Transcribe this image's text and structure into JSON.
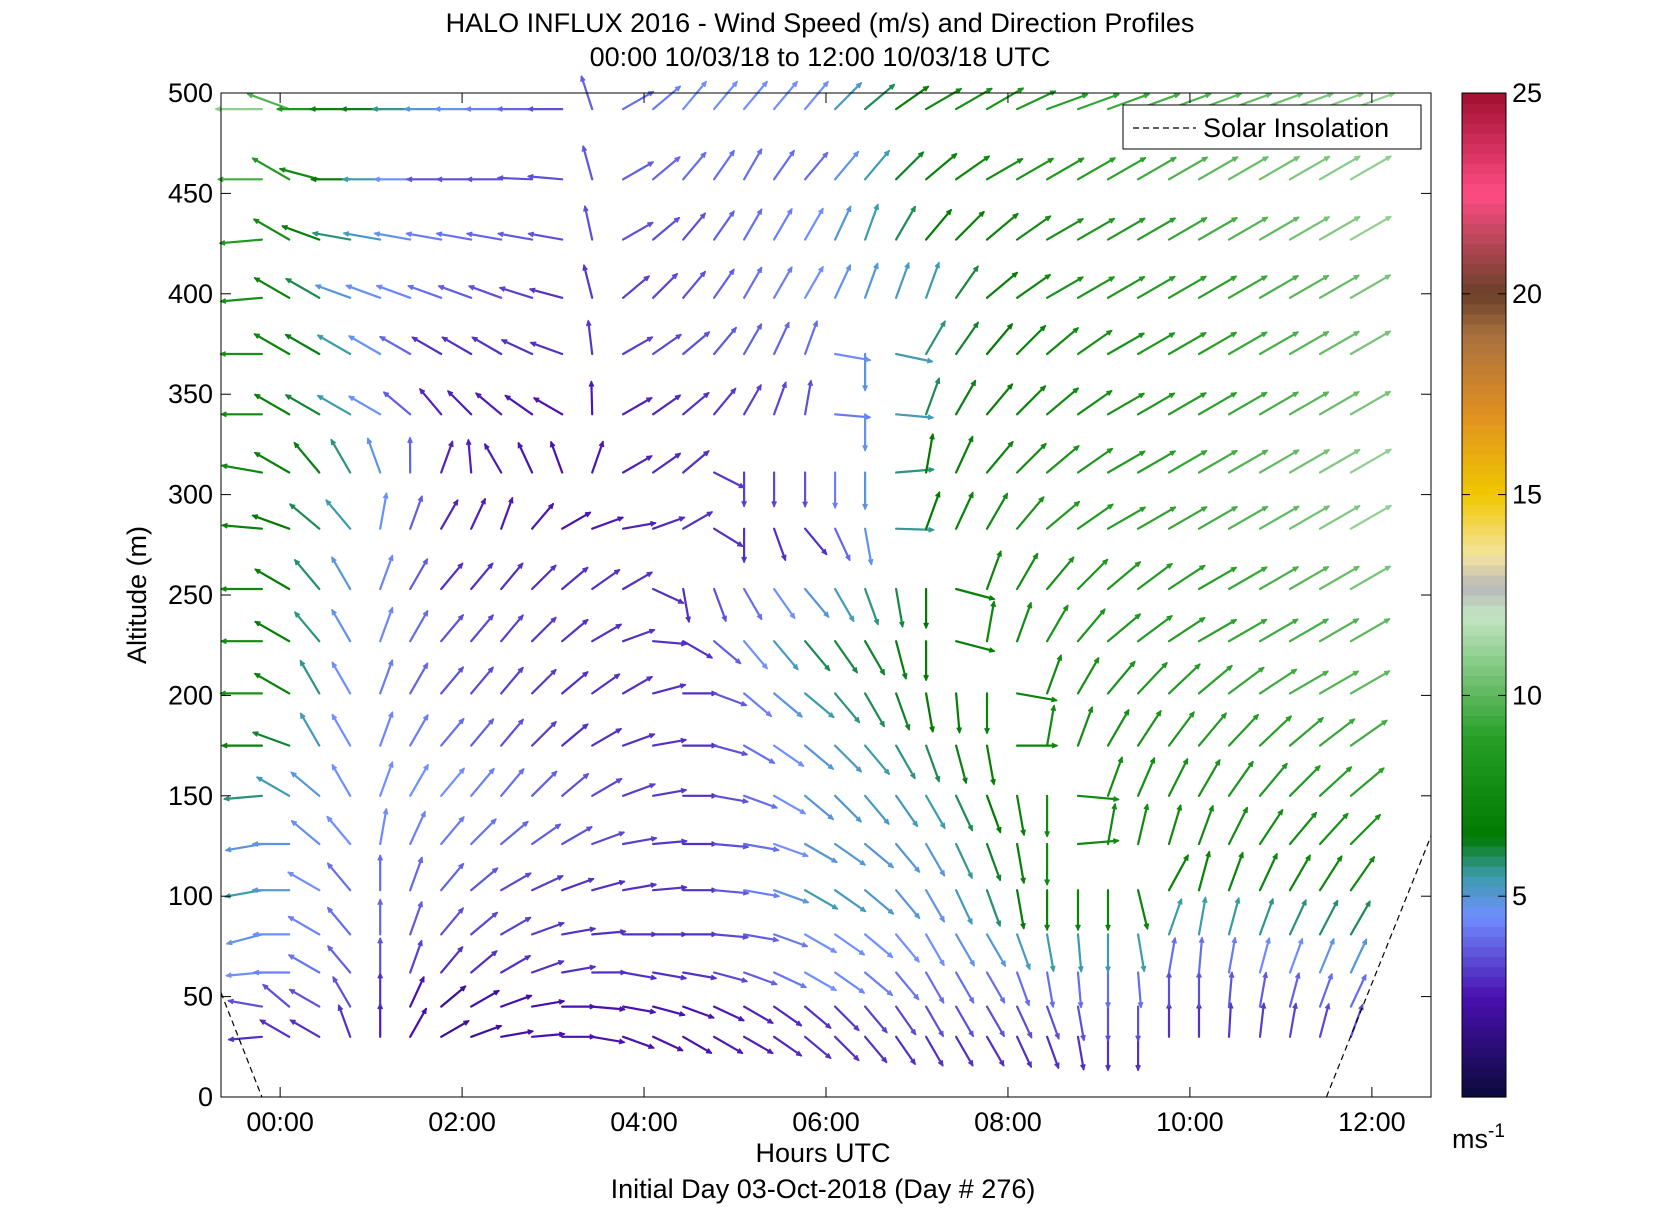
{
  "chart_data": {
    "type": "quiver",
    "title": "HALO INFLUX 2016 - Wind Speed (m/s) and Direction Profiles",
    "subtitle": "00:00 10/03/18 to 12:00 10/03/18  UTC",
    "xlabel": "Hours UTC",
    "footer": "Initial Day 03-Oct-2018 (Day # 276)",
    "ylabel": "Altitude (m)",
    "xlim": [
      -0.65,
      12.65
    ],
    "ylim": [
      0,
      500
    ],
    "x_ticks": [
      0,
      2,
      4,
      6,
      8,
      10,
      12
    ],
    "x_tick_labels": [
      "00:00",
      "02:00",
      "04:00",
      "06:00",
      "08:00",
      "10:00",
      "12:00"
    ],
    "y_ticks": [
      0,
      50,
      100,
      150,
      200,
      250,
      300,
      350,
      400,
      450,
      500
    ],
    "y_tick_labels": [
      "0",
      "50",
      "100",
      "150",
      "200",
      "250",
      "300",
      "350",
      "400",
      "450",
      "500"
    ],
    "legend": {
      "position": "top-right",
      "entries": [
        "Solar Insolation"
      ]
    },
    "colorbar": {
      "min": 0,
      "max": 25,
      "ticks": [
        5,
        10,
        15,
        20,
        25
      ],
      "tick_labels": [
        "5",
        "10",
        "15",
        "20",
        "25"
      ],
      "unit_label": "ms",
      "unit_exponent": "-1",
      "stops": [
        {
          "v": 0,
          "c": "#0a0a3c"
        },
        {
          "v": 2.5,
          "c": "#4a10b0"
        },
        {
          "v": 4.5,
          "c": "#6f8fff"
        },
        {
          "v": 5.5,
          "c": "#3c9cac"
        },
        {
          "v": 6.5,
          "c": "#007a00"
        },
        {
          "v": 9,
          "c": "#28a028"
        },
        {
          "v": 12,
          "c": "#c4e6c4"
        },
        {
          "v": 12.7,
          "c": "#b8b8b8"
        },
        {
          "v": 13.5,
          "c": "#f4e4a0"
        },
        {
          "v": 15,
          "c": "#f0c800"
        },
        {
          "v": 17,
          "c": "#e09020"
        },
        {
          "v": 19,
          "c": "#a87040"
        },
        {
          "v": 20,
          "c": "#6a4028"
        },
        {
          "v": 22.5,
          "c": "#ff4c84"
        },
        {
          "v": 25,
          "c": "#a01030"
        }
      ]
    },
    "solar_insolation": [
      {
        "x": [
          -0.65,
          -0.2
        ],
        "y": [
          52,
          0
        ]
      },
      {
        "x": [
          11.5,
          12.65
        ],
        "y": [
          0,
          130
        ]
      }
    ],
    "profile_times": [
      -0.2,
      0.1,
      0.43,
      0.77,
      1.1,
      1.43,
      1.77,
      2.1,
      2.43,
      2.77,
      3.1,
      3.43,
      3.77,
      4.1,
      4.43,
      4.77,
      5.1,
      5.43,
      5.77,
      6.1,
      6.43,
      6.77,
      7.1,
      7.43,
      7.77,
      8.1,
      8.43,
      8.77,
      9.1,
      9.43,
      9.77,
      10.1,
      10.43,
      10.77,
      11.1,
      11.43,
      11.77
    ],
    "altitudes": [
      30,
      45,
      62,
      81,
      103,
      126,
      150,
      175,
      201,
      227,
      253,
      283,
      311,
      340,
      370,
      398,
      427,
      457,
      492
    ],
    "direction_keyframes": [
      {
        "t": -0.2,
        "a": [
          265,
          280,
          265,
          255,
          260,
          260,
          265,
          270,
          270,
          270,
          270,
          275,
          280,
          270,
          270,
          265,
          265,
          270,
          270
        ]
      },
      {
        "t": 0.1,
        "a": [
          300,
          310,
          270,
          270,
          270,
          270,
          300,
          290,
          300,
          300,
          300,
          290,
          300,
          300,
          300,
          300,
          300,
          300,
          290
        ]
      },
      {
        "t": 0.43,
        "a": [
          300,
          300,
          300,
          300,
          300,
          310,
          310,
          330,
          330,
          320,
          320,
          310,
          320,
          300,
          300,
          300,
          290,
          285,
          270
        ]
      },
      {
        "t": 0.77,
        "a": [
          340,
          330,
          320,
          320,
          320,
          320,
          330,
          330,
          330,
          330,
          330,
          320,
          330,
          300,
          300,
          290,
          280,
          270,
          270
        ]
      },
      {
        "t": 1.1,
        "a": [
          0,
          0,
          0,
          0,
          0,
          10,
          20,
          20,
          20,
          20,
          20,
          10,
          340,
          300,
          300,
          290,
          280,
          270,
          270
        ]
      },
      {
        "t": 1.77,
        "a": [
          60,
          50,
          40,
          40,
          40,
          40,
          40,
          40,
          40,
          40,
          40,
          30,
          20,
          320,
          300,
          290,
          280,
          270,
          270
        ]
      },
      {
        "t": 2.43,
        "a": [
          80,
          70,
          60,
          60,
          60,
          50,
          40,
          40,
          40,
          40,
          40,
          20,
          330,
          310,
          300,
          290,
          280,
          270,
          270
        ]
      },
      {
        "t": 3.1,
        "a": [
          90,
          90,
          80,
          80,
          70,
          60,
          50,
          50,
          50,
          50,
          50,
          60,
          340,
          300,
          290,
          285,
          280,
          275,
          270
        ]
      },
      {
        "t": 3.77,
        "a": [
          110,
          100,
          100,
          90,
          80,
          80,
          70,
          70,
          60,
          70,
          60,
          80,
          60,
          60,
          60,
          50,
          60,
          60,
          60
        ]
      },
      {
        "t": 4.43,
        "a": [
          120,
          110,
          100,
          90,
          90,
          90,
          90,
          90,
          90,
          120,
          170,
          60,
          50,
          50,
          50,
          40,
          40,
          40,
          40
        ]
      },
      {
        "t": 5.1,
        "a": [
          120,
          120,
          110,
          100,
          100,
          100,
          110,
          120,
          130,
          140,
          150,
          180,
          180,
          30,
          30,
          30,
          30,
          30,
          40
        ]
      },
      {
        "t": 5.77,
        "a": [
          130,
          130,
          120,
          120,
          120,
          120,
          130,
          130,
          130,
          140,
          140,
          140,
          180,
          10,
          20,
          30,
          30,
          40,
          40
        ]
      },
      {
        "t": 6.43,
        "a": [
          140,
          140,
          130,
          130,
          130,
          130,
          140,
          140,
          150,
          150,
          160,
          170,
          180,
          180,
          180,
          20,
          20,
          40,
          50
        ]
      },
      {
        "t": 7.1,
        "a": [
          150,
          150,
          150,
          150,
          150,
          150,
          150,
          160,
          170,
          180,
          180,
          20,
          10,
          20,
          30,
          20,
          40,
          50,
          60
        ]
      },
      {
        "t": 7.77,
        "a": [
          150,
          150,
          150,
          150,
          160,
          160,
          160,
          170,
          180,
          10,
          20,
          30,
          40,
          40,
          40,
          50,
          50,
          60,
          60
        ]
      },
      {
        "t": 8.43,
        "a": [
          160,
          160,
          170,
          170,
          180,
          180,
          180,
          10,
          20,
          30,
          40,
          50,
          50,
          50,
          50,
          60,
          60,
          60,
          70
        ]
      },
      {
        "t": 9.1,
        "a": [
          180,
          180,
          180,
          180,
          180,
          10,
          20,
          30,
          40,
          50,
          50,
          60,
          60,
          60,
          60,
          60,
          60,
          60,
          70
        ]
      },
      {
        "t": 10.1,
        "a": [
          0,
          0,
          5,
          10,
          15,
          20,
          30,
          40,
          50,
          60,
          60,
          60,
          60,
          60,
          60,
          60,
          60,
          60,
          70
        ]
      },
      {
        "t": 11.1,
        "a": [
          10,
          15,
          20,
          25,
          30,
          40,
          45,
          50,
          60,
          60,
          60,
          60,
          60,
          60,
          60,
          60,
          60,
          60,
          70
        ]
      },
      {
        "t": 11.77,
        "a": [
          20,
          25,
          25,
          30,
          35,
          45,
          50,
          55,
          60,
          60,
          60,
          60,
          60,
          60,
          60,
          60,
          60,
          60,
          70
        ]
      }
    ],
    "speed_keyframes": [
      {
        "t": -0.2,
        "a": [
          3,
          3.5,
          4.5,
          4.8,
          5.5,
          5,
          5.8,
          7,
          8,
          7.5,
          7.5,
          7,
          7.5,
          7.5,
          8,
          8,
          8.5,
          9.5,
          11
        ]
      },
      {
        "t": 0.77,
        "a": [
          3,
          3.5,
          3.8,
          4,
          4,
          4.5,
          4.5,
          4.5,
          4.5,
          4.8,
          5,
          5.5,
          5.8,
          5.5,
          5.5,
          5,
          5.8,
          6.5,
          7
        ]
      },
      {
        "t": 1.77,
        "a": [
          2,
          2,
          3,
          3.5,
          3.8,
          4.2,
          4.5,
          4,
          3.5,
          3.5,
          3,
          2.8,
          2.8,
          2.8,
          3,
          4,
          4.2,
          3.5,
          5
        ]
      },
      {
        "t": 3.1,
        "a": [
          2.5,
          2.5,
          3,
          3,
          3,
          3.5,
          3.5,
          3,
          3,
          3,
          3,
          2.5,
          2.5,
          2.5,
          3,
          3,
          3.5,
          3.5,
          3.5
        ]
      },
      {
        "t": 4.43,
        "a": [
          2.5,
          2.5,
          3,
          3,
          3,
          3,
          3,
          3,
          3,
          3,
          3,
          3,
          3,
          3,
          3.5,
          3.5,
          3.5,
          4,
          4.5
        ]
      },
      {
        "t": 5.77,
        "a": [
          3,
          3,
          4.5,
          4.5,
          5.5,
          5,
          5,
          5,
          5.5,
          6,
          5,
          3,
          3.5,
          3.5,
          4,
          4.5,
          4.5,
          4,
          4.5
        ]
      },
      {
        "t": 7.1,
        "a": [
          3,
          3.5,
          4,
          4.5,
          4.8,
          5,
          5.5,
          6,
          6.5,
          6.5,
          6.5,
          6.5,
          6.5,
          6,
          5.8,
          5.5,
          6.5,
          7,
          7.5
        ]
      },
      {
        "t": 8.43,
        "a": [
          3,
          3.5,
          4,
          5.5,
          7,
          7.5,
          7.5,
          7.5,
          7.5,
          8,
          8,
          8.5,
          8,
          7.5,
          7.5,
          8,
          8,
          8.5,
          9
        ]
      },
      {
        "t": 10.1,
        "a": [
          3,
          3.5,
          4,
          5.5,
          7,
          7.5,
          8,
          8.5,
          9,
          9,
          9,
          9.5,
          9.5,
          9,
          9,
          9,
          9.5,
          10,
          10
        ]
      },
      {
        "t": 11.77,
        "a": [
          3.5,
          4,
          5,
          6,
          7.5,
          8,
          9,
          9.5,
          10,
          10,
          10.5,
          11,
          11,
          10.5,
          10.5,
          10.5,
          11,
          11,
          11
        ]
      }
    ]
  }
}
